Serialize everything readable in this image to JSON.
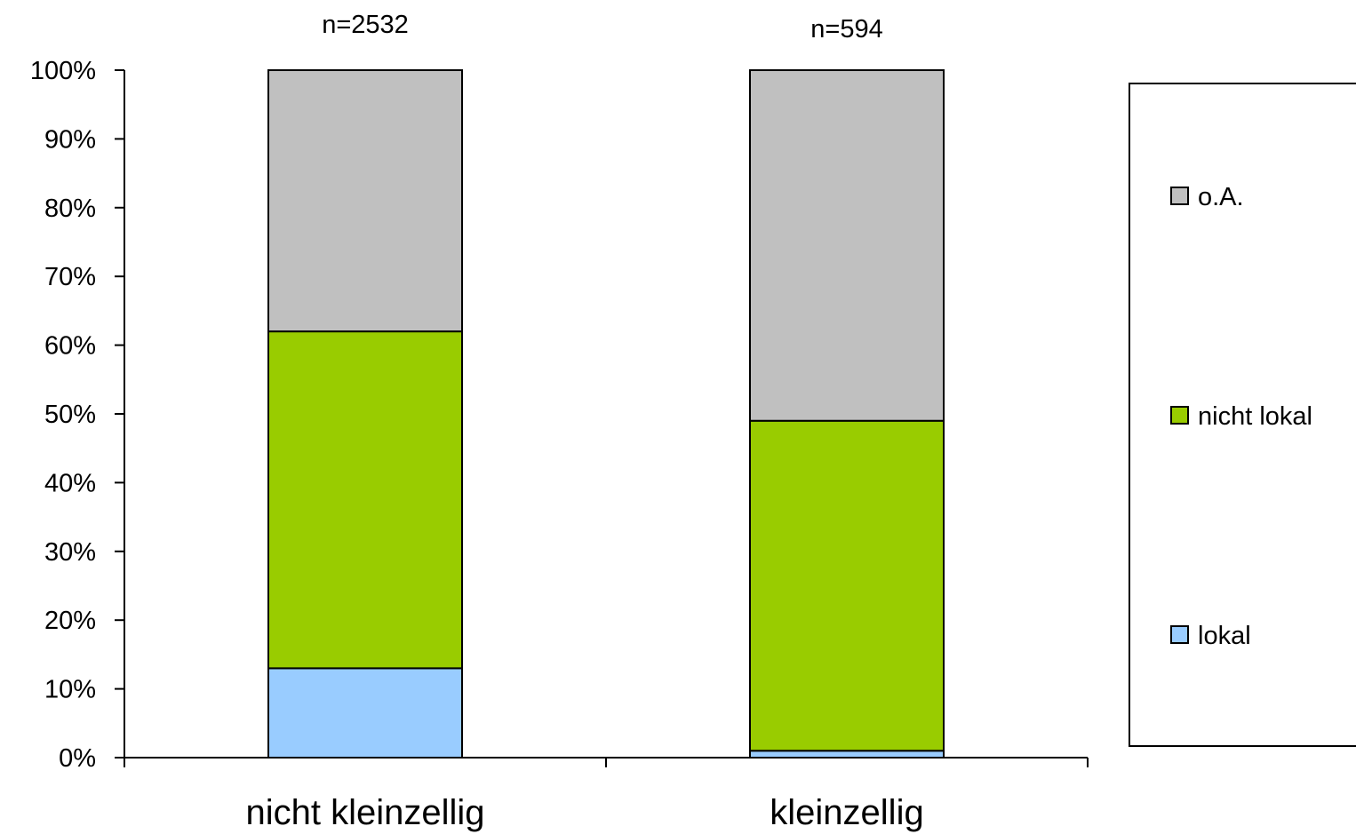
{
  "chart_data": {
    "type": "bar",
    "stacked": true,
    "categories": [
      "nicht kleinzellig",
      "kleinzellig"
    ],
    "annotations": [
      "n=2532",
      "n=594"
    ],
    "series": [
      {
        "name": "lokal",
        "values": [
          13,
          1
        ],
        "color": "#99ccff"
      },
      {
        "name": "nicht lokal",
        "values": [
          49,
          48
        ],
        "color": "#99cc00"
      },
      {
        "name": "o.A.",
        "values": [
          38,
          51
        ],
        "color": "#c0c0c0"
      }
    ],
    "yticks": [
      "0%",
      "10%",
      "20%",
      "30%",
      "40%",
      "50%",
      "60%",
      "70%",
      "80%",
      "90%",
      "100%"
    ],
    "ylim": [
      0,
      100
    ],
    "grid": false,
    "legend_position": "right",
    "legend_order": [
      "o.A.",
      "nicht lokal",
      "lokal"
    ]
  }
}
